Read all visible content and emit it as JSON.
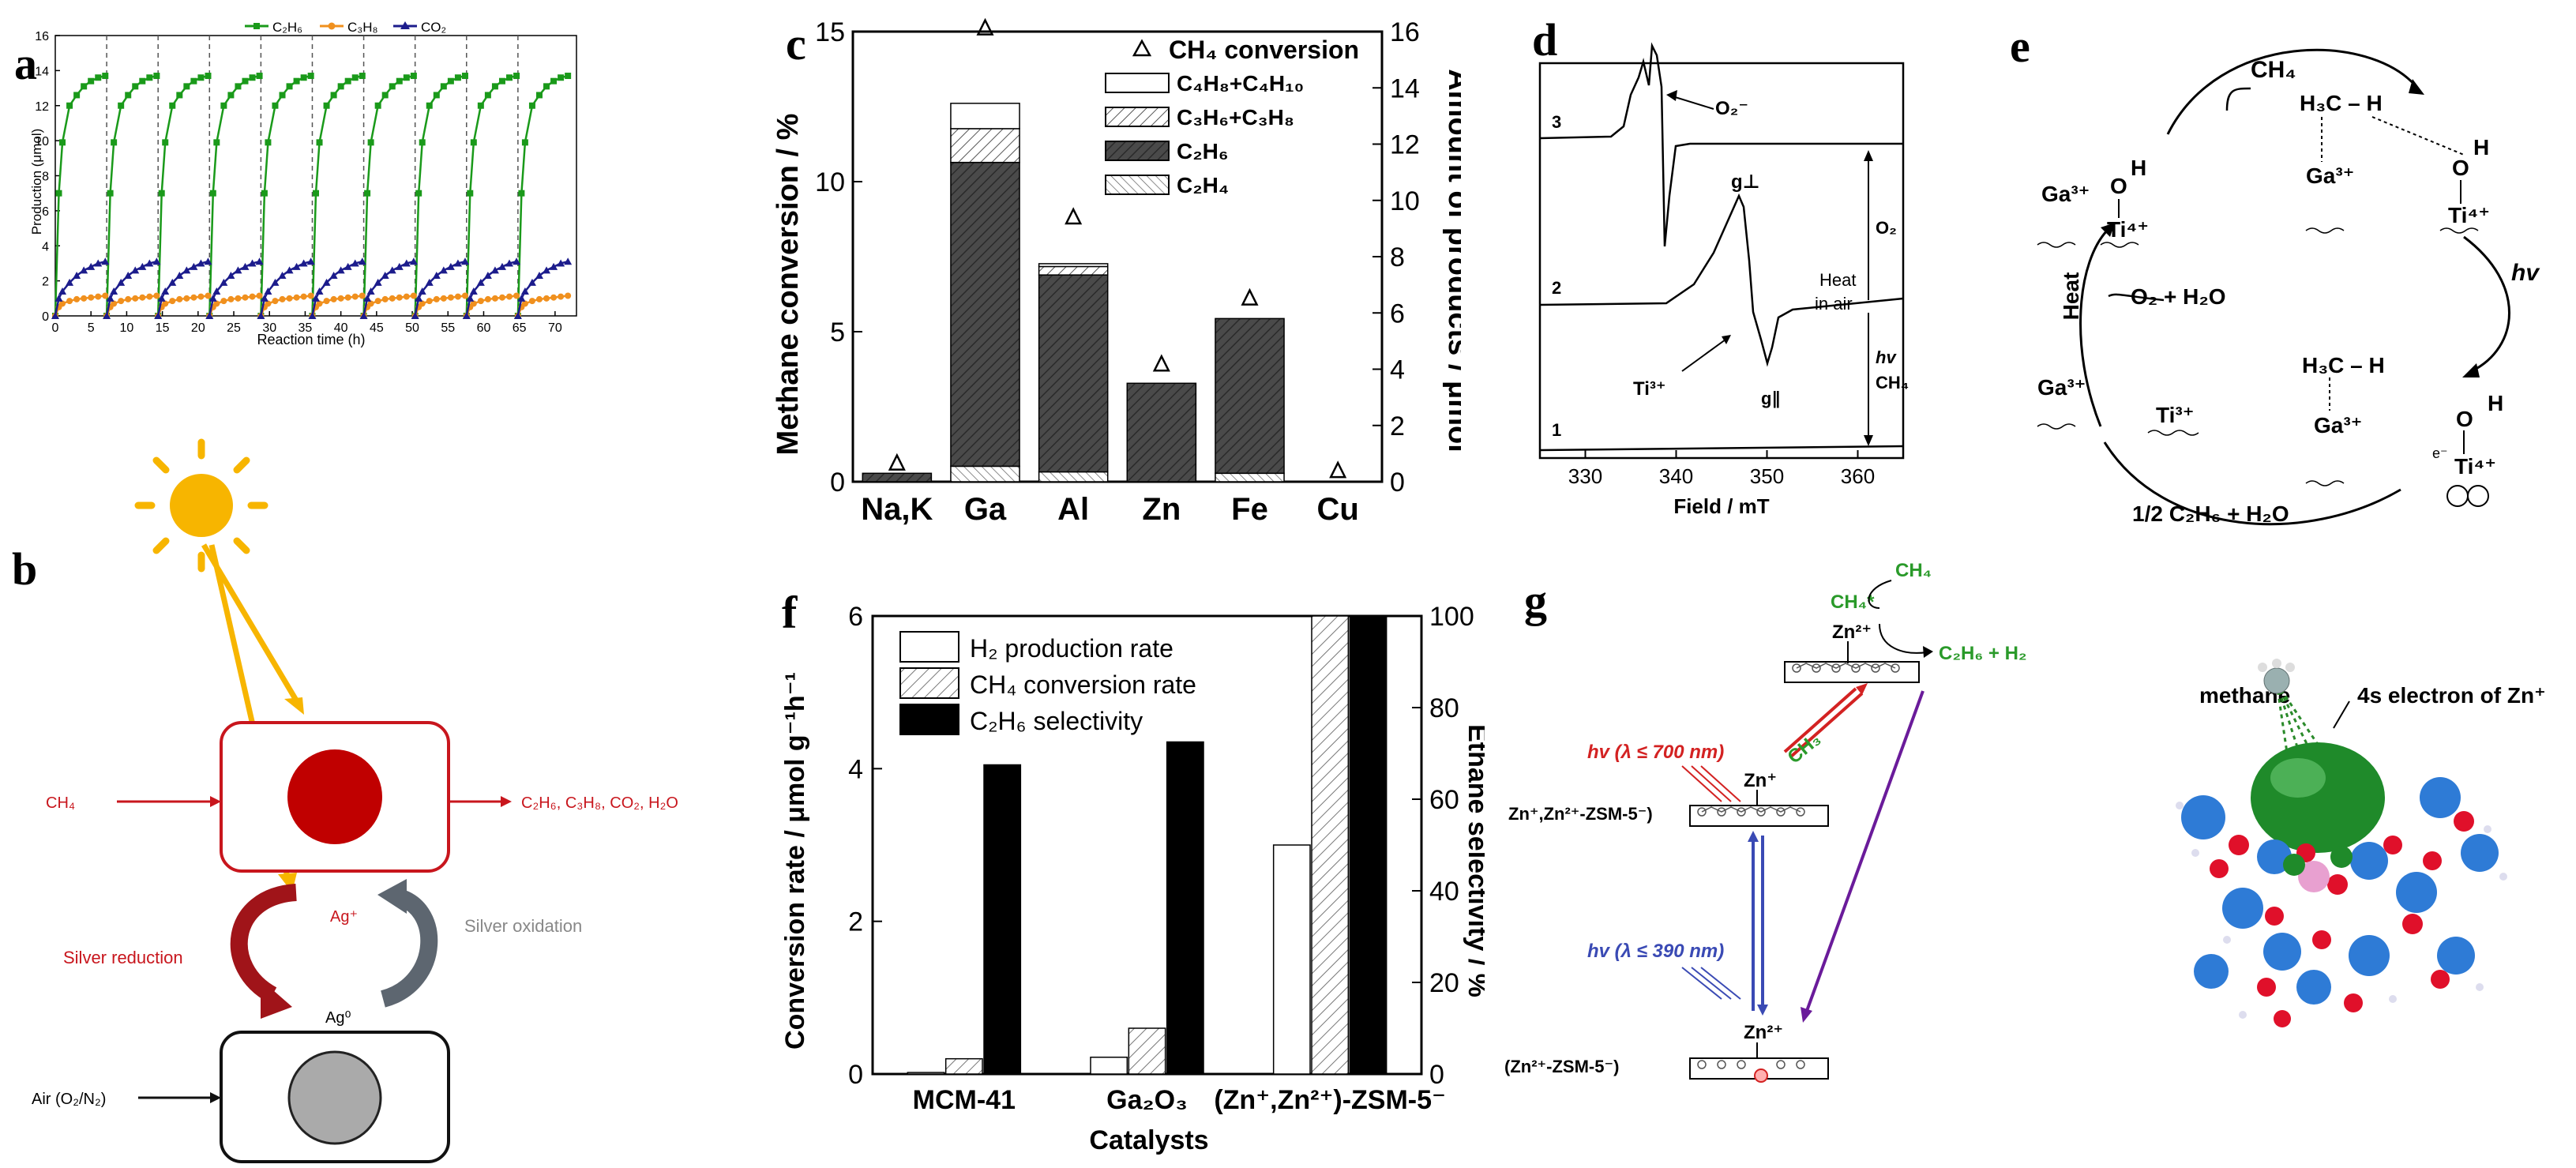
{
  "panel_letters": {
    "a": "a",
    "b": "b",
    "c": "c",
    "d": "d",
    "e": "e",
    "f": "f",
    "g": "g"
  },
  "chart_data": [
    {
      "id": "a",
      "type": "line",
      "xlabel": "Reaction time (h)",
      "ylabel": "Production (μmol)",
      "xlim": [
        0,
        73
      ],
      "ylim": [
        0,
        16
      ],
      "xticks": [
        0,
        5,
        10,
        15,
        20,
        25,
        30,
        35,
        40,
        45,
        50,
        55,
        60,
        65,
        70
      ],
      "yticks": [
        0,
        2,
        4,
        6,
        8,
        10,
        12,
        14,
        16
      ],
      "cycle_boundaries": [
        7.2,
        14.4,
        21.6,
        28.8,
        36,
        43.2,
        50.4,
        57.6,
        64.8
      ],
      "cycle_length": 7.2,
      "cycle_sample_times": [
        0,
        0.5,
        1,
        2,
        3,
        4,
        5,
        6,
        7
      ],
      "legend": {
        "s1": "C₂H₆",
        "s2": "C₃H₈",
        "s3": "CO₂"
      },
      "series": [
        {
          "name": "C₂H₆",
          "color": "#1a9a1a",
          "marker": "square",
          "cycle_values": [
            0,
            7,
            9.9,
            12,
            12.6,
            13.1,
            13.4,
            13.6,
            13.7
          ]
        },
        {
          "name": "C₃H₈",
          "color": "#f0901e",
          "marker": "circle",
          "cycle_values": [
            0,
            0.5,
            0.7,
            0.85,
            0.95,
            1.0,
            1.05,
            1.1,
            1.15
          ]
        },
        {
          "name": "CO₂",
          "color": "#1c1c8c",
          "marker": "triangle",
          "cycle_values": [
            0,
            1.0,
            1.4,
            1.9,
            2.3,
            2.6,
            2.8,
            3.0,
            3.1
          ]
        }
      ]
    },
    {
      "id": "c",
      "type": "bar",
      "ylabel": "Methane conversion / %",
      "y2label": "Amount of products / μmol",
      "categories": [
        "Na,K",
        "Ga",
        "Al",
        "Zn",
        "Fe",
        "Cu"
      ],
      "ylim": [
        0,
        15
      ],
      "y2lim": [
        0,
        16
      ],
      "yticks": [
        0,
        5,
        10,
        15
      ],
      "y2ticks": [
        0,
        2,
        4,
        6,
        8,
        10,
        12,
        14,
        16
      ],
      "legend": [
        "CH₄ conversion",
        "C₄H₈+C₄H₁₀",
        "C₃H₆+C₃H₈",
        "C₂H₆",
        "C₂H₄"
      ],
      "stacks": [
        {
          "name": "C₂H₄",
          "values": [
            0,
            0.55,
            0.35,
            0,
            0.3,
            0
          ]
        },
        {
          "name": "C₂H₆",
          "values": [
            0.3,
            10.8,
            7.0,
            3.5,
            5.5,
            0
          ]
        },
        {
          "name": "C₃H₆+C₃H₈",
          "values": [
            0,
            1.2,
            0.3,
            0,
            0,
            0
          ]
        },
        {
          "name": "C₄H₈+C₄H₁₀",
          "values": [
            0,
            0.9,
            0.1,
            0,
            0,
            0
          ]
        }
      ],
      "ch4_conversion": [
        0.3,
        14.8,
        8.5,
        3.6,
        5.8,
        0.05
      ]
    },
    {
      "id": "d",
      "type": "line",
      "xlabel": "Field / mT",
      "xticks": [
        330,
        340,
        350,
        360
      ],
      "xlim": [
        325,
        365
      ],
      "traces": [
        "1",
        "2",
        "3"
      ],
      "annotations": {
        "o2minus": "O₂⁻",
        "gperp": "g⊥",
        "gpar": "g∥",
        "ti3": "Ti³⁺",
        "heat": "Heat",
        "inair": "in air",
        "o2": "O₂",
        "hv": "hv",
        "ch4": "CH₄"
      }
    },
    {
      "id": "f",
      "type": "bar",
      "xlabel": "Catalysts",
      "ylabel": "Conversion rate / μmol g⁻¹h⁻¹",
      "y2label": "Ethane selectivity / %",
      "categories": [
        "MCM-41",
        "Ga₂O₃",
        "(Zn⁺,Zn²⁺)-ZSM-5⁻"
      ],
      "ylim": [
        0,
        6
      ],
      "y2lim": [
        0,
        100
      ],
      "yticks": [
        0,
        2,
        4,
        6
      ],
      "y2ticks": [
        0,
        20,
        40,
        60,
        80,
        100
      ],
      "series": [
        {
          "name": "H₂ production rate",
          "axis": "left",
          "values": [
            0.02,
            0.22,
            3.0
          ]
        },
        {
          "name": "CH₄ conversion rate",
          "axis": "left",
          "values": [
            0.2,
            0.6,
            6.0
          ]
        },
        {
          "name": "C₂H₆ selectivity",
          "axis": "right",
          "values": [
            67.5,
            72.5,
            100
          ]
        }
      ]
    }
  ],
  "panel_b": {
    "ch4": "CH₄",
    "products": "C₂H₆, C₃H₈, CO₂, H₂O",
    "ag_plus": "Ag⁺",
    "ag0": "Ag⁰",
    "silver_reduction": "Silver reduction",
    "silver_oxidation": "Silver oxidation",
    "air": "Air (O₂/N₂)"
  },
  "panel_e": {
    "ch4": "CH₄",
    "ga3_left": "Ga³⁺",
    "o_left": "O",
    "h_left": "H",
    "ti4_left": "Ti⁴⁺",
    "h3c_top": "H₃C – H",
    "ga3_top": "Ga³⁺",
    "o_top": "O",
    "h_top": "H",
    "ti4_top": "Ti⁴⁺",
    "hv": "hv",
    "heat": "Heat",
    "o2h2o": "O₂ + H₂O",
    "ga3_bl": "Ga³⁺",
    "ti3": "Ti³⁺",
    "h3c_bot": "H₃C – H",
    "ga3_br": "Ga³⁺",
    "o_br": "O",
    "h_br": "H",
    "ti4_br": "Ti⁴⁺",
    "e": "e⁻",
    "product": "1/2 C₂H₆ + H₂O"
  },
  "panel_g": {
    "ch4": "CH₄",
    "ch4star": "CH₄*",
    "zn2top": "Zn²⁺",
    "c2h6h2": "C₂H₆ + H₂",
    "hv700": "hv (λ ≤ 700 nm)",
    "ch3": "CH₃",
    "zn1": "Zn⁺",
    "zeolite1": "Zn⁺,Zn²⁺-ZSM-5⁻)",
    "hv390": "hv (λ ≤ 390 nm)",
    "zn2bot": "Zn²⁺",
    "zeolite2": "(Zn²⁺-ZSM-5⁻)",
    "methane": "methane",
    "electron": "4s electron of Zn⁺"
  }
}
